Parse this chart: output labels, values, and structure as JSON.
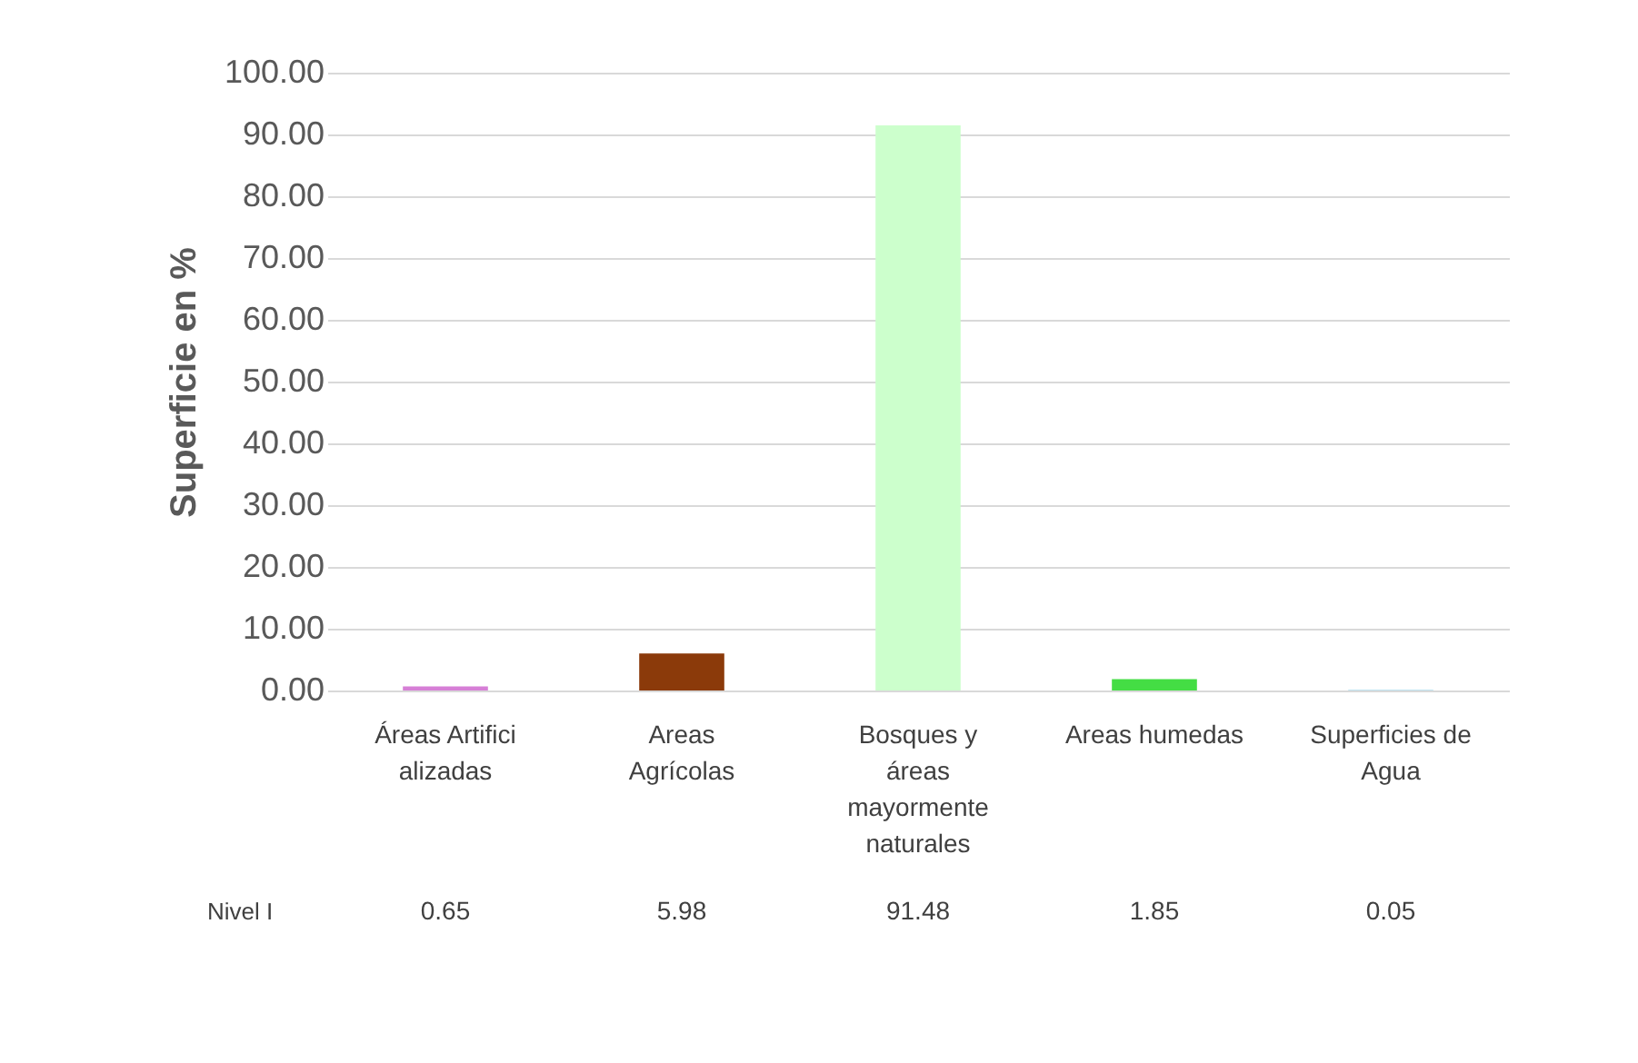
{
  "chart_data": {
    "type": "bar",
    "ylabel": "Superficie en %",
    "categories": [
      "Áreas Artificializadas",
      "Areas Agrícolas",
      "Bosques y áreas mayormente naturales",
      "Areas humedas",
      "Superficies de Agua"
    ],
    "series": [
      {
        "name": "Nivel I",
        "colors": [
          "#d67fd6",
          "#8b3a0a",
          "#ccffcc",
          "#44dd44",
          "#0099cc"
        ],
        "values": [
          0.65,
          5.98,
          91.48,
          1.85,
          0.05
        ]
      }
    ],
    "ylim": [
      0,
      100
    ],
    "yticks": [
      {
        "value": 0,
        "label": "0.00"
      },
      {
        "value": 10,
        "label": "10.00"
      },
      {
        "value": 20,
        "label": "20.00"
      },
      {
        "value": 30,
        "label": "30.00"
      },
      {
        "value": 40,
        "label": "40.00"
      },
      {
        "value": 50,
        "label": "50.00"
      },
      {
        "value": 60,
        "label": "60.00"
      },
      {
        "value": 70,
        "label": "70.00"
      },
      {
        "value": 80,
        "label": "80.00"
      },
      {
        "value": 90,
        "label": "90.00"
      },
      {
        "value": 100,
        "label": "100.00"
      }
    ],
    "grid": "y",
    "data_labels": true
  }
}
